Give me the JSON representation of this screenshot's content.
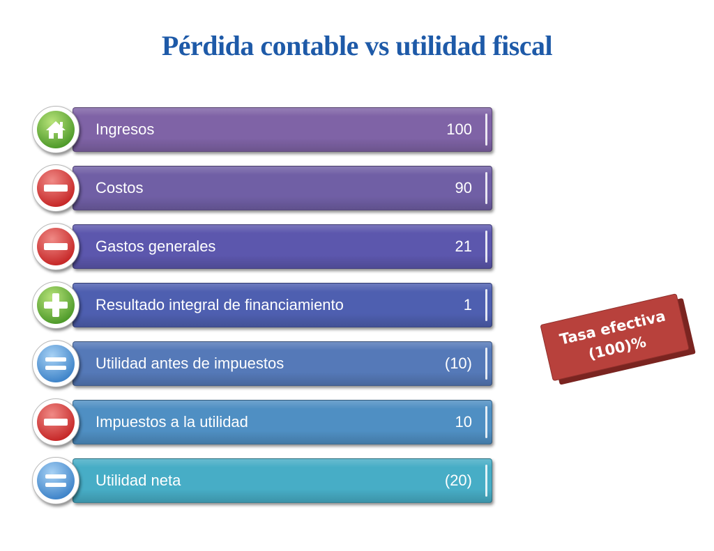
{
  "title": "Pérdida contable vs utilidad fiscal",
  "rows": [
    {
      "label": "Ingresos",
      "value": "100",
      "icon": "home-icon",
      "bar_color": "#7f63a6",
      "icon_color": "#4e9a2a"
    },
    {
      "label": "Costos",
      "value": "90",
      "icon": "minus-icon",
      "bar_color": "#705fa5",
      "icon_color": "#c62828"
    },
    {
      "label": "Gastos generales",
      "value": "21",
      "icon": "minus-icon",
      "bar_color": "#5c57ad",
      "icon_color": "#c62828"
    },
    {
      "label": "Resultado integral de financiamiento",
      "value": "1",
      "icon": "plus-icon",
      "bar_color": "#4e5fb0",
      "icon_color": "#4e9a2a"
    },
    {
      "label": "Utilidad antes de impuestos",
      "value": "(10)",
      "icon": "equals-icon",
      "bar_color": "#5579b8",
      "icon_color": "#3f84c9"
    },
    {
      "label": "Impuestos a la utilidad",
      "value": "10",
      "icon": "minus-icon",
      "bar_color": "#4f8fc3",
      "icon_color": "#c62828"
    },
    {
      "label": "Utilidad neta",
      "value": "(20)",
      "icon": "equals-icon",
      "bar_color": "#47adc6",
      "icon_color": "#3f84c9"
    }
  ],
  "badge": {
    "line1": "Tasa efectiva",
    "line2": "(100)%",
    "color": "#b8413c"
  }
}
